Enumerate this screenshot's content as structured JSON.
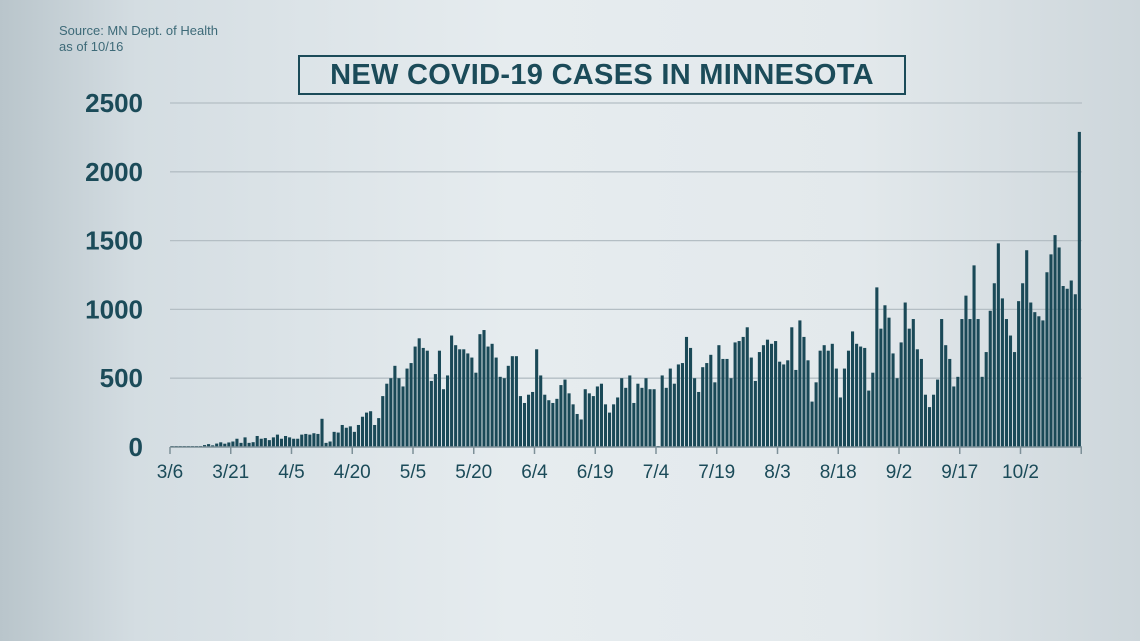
{
  "source_note": [
    "Source: MN Dept. of Health",
    "as of 10/16"
  ],
  "chart_data": {
    "type": "bar",
    "title": "NEW COVID-19 CASES IN MINNESOTA",
    "xlabel": "",
    "ylabel": "",
    "ylim": [
      0,
      2500
    ],
    "yticks": [
      0,
      500,
      1000,
      1500,
      2000,
      2500
    ],
    "xtick_labels": [
      "3/6",
      "3/21",
      "4/5",
      "4/20",
      "5/5",
      "5/20",
      "6/4",
      "6/19",
      "7/4",
      "7/19",
      "8/3",
      "8/18",
      "9/2",
      "9/17",
      "10/2"
    ],
    "grid": true,
    "bar_color": "#1a4957",
    "x": [
      "3/6",
      "3/7",
      "3/8",
      "3/9",
      "3/10",
      "3/11",
      "3/12",
      "3/13",
      "3/14",
      "3/15",
      "3/16",
      "3/17",
      "3/18",
      "3/19",
      "3/20",
      "3/21",
      "3/22",
      "3/23",
      "3/24",
      "3/25",
      "3/26",
      "3/27",
      "3/28",
      "3/29",
      "3/30",
      "3/31",
      "4/1",
      "4/2",
      "4/3",
      "4/4",
      "4/5",
      "4/6",
      "4/7",
      "4/8",
      "4/9",
      "4/10",
      "4/11",
      "4/12",
      "4/13",
      "4/14",
      "4/15",
      "4/16",
      "4/17",
      "4/18",
      "4/19",
      "4/20",
      "4/21",
      "4/22",
      "4/23",
      "4/24",
      "4/25",
      "4/26",
      "4/27",
      "4/28",
      "4/29",
      "4/30",
      "5/1",
      "5/2",
      "5/3",
      "5/4",
      "5/5",
      "5/6",
      "5/7",
      "5/8",
      "5/9",
      "5/10",
      "5/11",
      "5/12",
      "5/13",
      "5/14",
      "5/15",
      "5/16",
      "5/17",
      "5/18",
      "5/19",
      "5/20",
      "5/21",
      "5/22",
      "5/23",
      "5/24",
      "5/25",
      "5/26",
      "5/27",
      "5/28",
      "5/29",
      "5/30",
      "5/31",
      "6/1",
      "6/2",
      "6/3",
      "6/4",
      "6/5",
      "6/6",
      "6/7",
      "6/8",
      "6/9",
      "6/10",
      "6/11",
      "6/12",
      "6/13",
      "6/14",
      "6/15",
      "6/16",
      "6/17",
      "6/18",
      "6/19",
      "6/20",
      "6/21",
      "6/22",
      "6/23",
      "6/24",
      "6/25",
      "6/26",
      "6/27",
      "6/28",
      "6/29",
      "6/30",
      "7/1",
      "7/2",
      "7/3",
      "7/4",
      "7/5",
      "7/6",
      "7/7",
      "7/8",
      "7/9",
      "7/10",
      "7/11",
      "7/12",
      "7/13",
      "7/14",
      "7/15",
      "7/16",
      "7/17",
      "7/18",
      "7/19",
      "7/20",
      "7/21",
      "7/22",
      "7/23",
      "7/24",
      "7/25",
      "7/26",
      "7/27",
      "7/28",
      "7/29",
      "7/30",
      "7/31",
      "8/1",
      "8/2",
      "8/3",
      "8/4",
      "8/5",
      "8/6",
      "8/7",
      "8/8",
      "8/9",
      "8/10",
      "8/11",
      "8/12",
      "8/13",
      "8/14",
      "8/15",
      "8/16",
      "8/17",
      "8/18",
      "8/19",
      "8/20",
      "8/21",
      "8/22",
      "8/23",
      "8/24",
      "8/25",
      "8/26",
      "8/27",
      "8/28",
      "8/29",
      "8/30",
      "8/31",
      "9/1",
      "9/2",
      "9/3",
      "9/4",
      "9/5",
      "9/6",
      "9/7",
      "9/8",
      "9/9",
      "9/10",
      "9/11",
      "9/12",
      "9/13",
      "9/14",
      "9/15",
      "9/16",
      "9/17",
      "9/18",
      "9/19",
      "9/20",
      "9/21",
      "9/22",
      "9/23",
      "9/24",
      "9/25",
      "9/26",
      "9/27",
      "9/28",
      "9/29",
      "9/30",
      "10/1",
      "10/2",
      "10/3",
      "10/4",
      "10/5",
      "10/6",
      "10/7",
      "10/8",
      "10/9",
      "10/10",
      "10/11",
      "10/12",
      "10/13",
      "10/14",
      "10/15",
      "10/16"
    ],
    "values": [
      1,
      0,
      1,
      0,
      3,
      4,
      5,
      6,
      14,
      21,
      12,
      25,
      34,
      24,
      33,
      40,
      60,
      30,
      70,
      30,
      35,
      80,
      60,
      65,
      50,
      70,
      90,
      60,
      80,
      70,
      60,
      60,
      90,
      95,
      90,
      100,
      95,
      205,
      30,
      40,
      110,
      105,
      160,
      140,
      150,
      110,
      160,
      220,
      250,
      260,
      160,
      210,
      370,
      460,
      500,
      590,
      500,
      440,
      570,
      610,
      730,
      790,
      720,
      700,
      480,
      530,
      700,
      420,
      520,
      810,
      740,
      710,
      710,
      680,
      650,
      540,
      820,
      850,
      730,
      750,
      650,
      510,
      500,
      590,
      660,
      660,
      370,
      320,
      380,
      400,
      710,
      520,
      380,
      340,
      320,
      350,
      450,
      490,
      390,
      310,
      240,
      200,
      420,
      390,
      370,
      440,
      460,
      310,
      250,
      310,
      360,
      500,
      430,
      520,
      320,
      460,
      430,
      500,
      420,
      420,
      0,
      520,
      430,
      570,
      460,
      600,
      610,
      800,
      720,
      500,
      400,
      580,
      610,
      670,
      470,
      740,
      640,
      640,
      500,
      760,
      770,
      800,
      870,
      650,
      480,
      690,
      740,
      780,
      750,
      770,
      620,
      600,
      630,
      870,
      560,
      920,
      800,
      630,
      330,
      470,
      700,
      740,
      700,
      750,
      570,
      360,
      570,
      700,
      840,
      750,
      730,
      720,
      410,
      540,
      1160,
      860,
      1030,
      940,
      680,
      500,
      760,
      1050,
      860,
      930,
      710,
      640,
      380,
      290,
      380,
      490,
      930,
      740,
      640,
      440,
      510,
      930,
      1100,
      930,
      1320,
      930,
      510,
      690,
      990,
      1190,
      1480,
      1080,
      930,
      810,
      690,
      1060,
      1190,
      1430,
      1050,
      980,
      950,
      920,
      1270,
      1400,
      1540,
      1450,
      1170,
      1150,
      1210,
      1110,
      2290
    ]
  }
}
